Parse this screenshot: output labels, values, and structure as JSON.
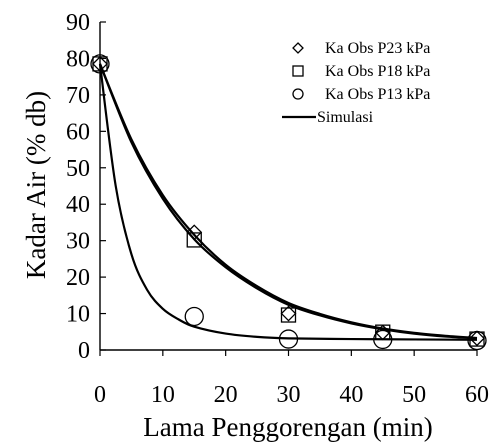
{
  "chart_data": {
    "type": "scatter",
    "xlabel": "Lama Penggorengan (min)",
    "ylabel": "Kadar Air (% db)",
    "xlim": [
      0,
      60
    ],
    "ylim": [
      0,
      90
    ],
    "xticks": [
      0,
      10,
      20,
      30,
      40,
      50,
      60
    ],
    "yticks": [
      0,
      10,
      20,
      30,
      40,
      50,
      60,
      70,
      80,
      90
    ],
    "grid": false,
    "legend_position": "top-right",
    "series": [
      {
        "name": "Ka Obs P23 kPa",
        "marker": "diamond",
        "x": [
          0,
          15,
          30,
          45,
          60
        ],
        "y": [
          78.5,
          32.3,
          10.0,
          4.8,
          3.2
        ]
      },
      {
        "name": "Ka Obs P18 kPa",
        "marker": "square",
        "x": [
          0,
          15,
          30,
          45,
          60
        ],
        "y": [
          78.5,
          30.2,
          9.6,
          4.9,
          3.0
        ]
      },
      {
        "name": "Ka Obs P13 kPa",
        "marker": "circle",
        "x": [
          0,
          15,
          30,
          45,
          60
        ],
        "y": [
          78.5,
          9.2,
          3.0,
          2.9,
          2.6
        ]
      },
      {
        "name": "Simulasi",
        "marker": "line"
      }
    ],
    "simulation_curves": [
      {
        "x": [
          0,
          5,
          10,
          15,
          20,
          25,
          30,
          35,
          40,
          45,
          50,
          55,
          60
        ],
        "y": [
          78.5,
          57.8,
          42.5,
          31.6,
          23.4,
          17.5,
          12.9,
          9.9,
          7.6,
          5.9,
          4.7,
          3.9,
          3.3
        ]
      },
      {
        "x": [
          0,
          5,
          10,
          15,
          20,
          25,
          30,
          35,
          40,
          45,
          50,
          55,
          60
        ],
        "y": [
          78.5,
          57.0,
          41.5,
          30.4,
          22.7,
          16.9,
          12.4,
          9.5,
          7.3,
          5.7,
          4.5,
          3.7,
          3.2
        ]
      },
      {
        "x": [
          0,
          2.5,
          5,
          7.5,
          10,
          12.5,
          15,
          20,
          25,
          30,
          40,
          50,
          60
        ],
        "y": [
          78.5,
          45.0,
          26.3,
          16.5,
          11.3,
          8.4,
          6.4,
          4.5,
          3.6,
          3.2,
          3.0,
          2.9,
          2.8
        ]
      }
    ]
  }
}
